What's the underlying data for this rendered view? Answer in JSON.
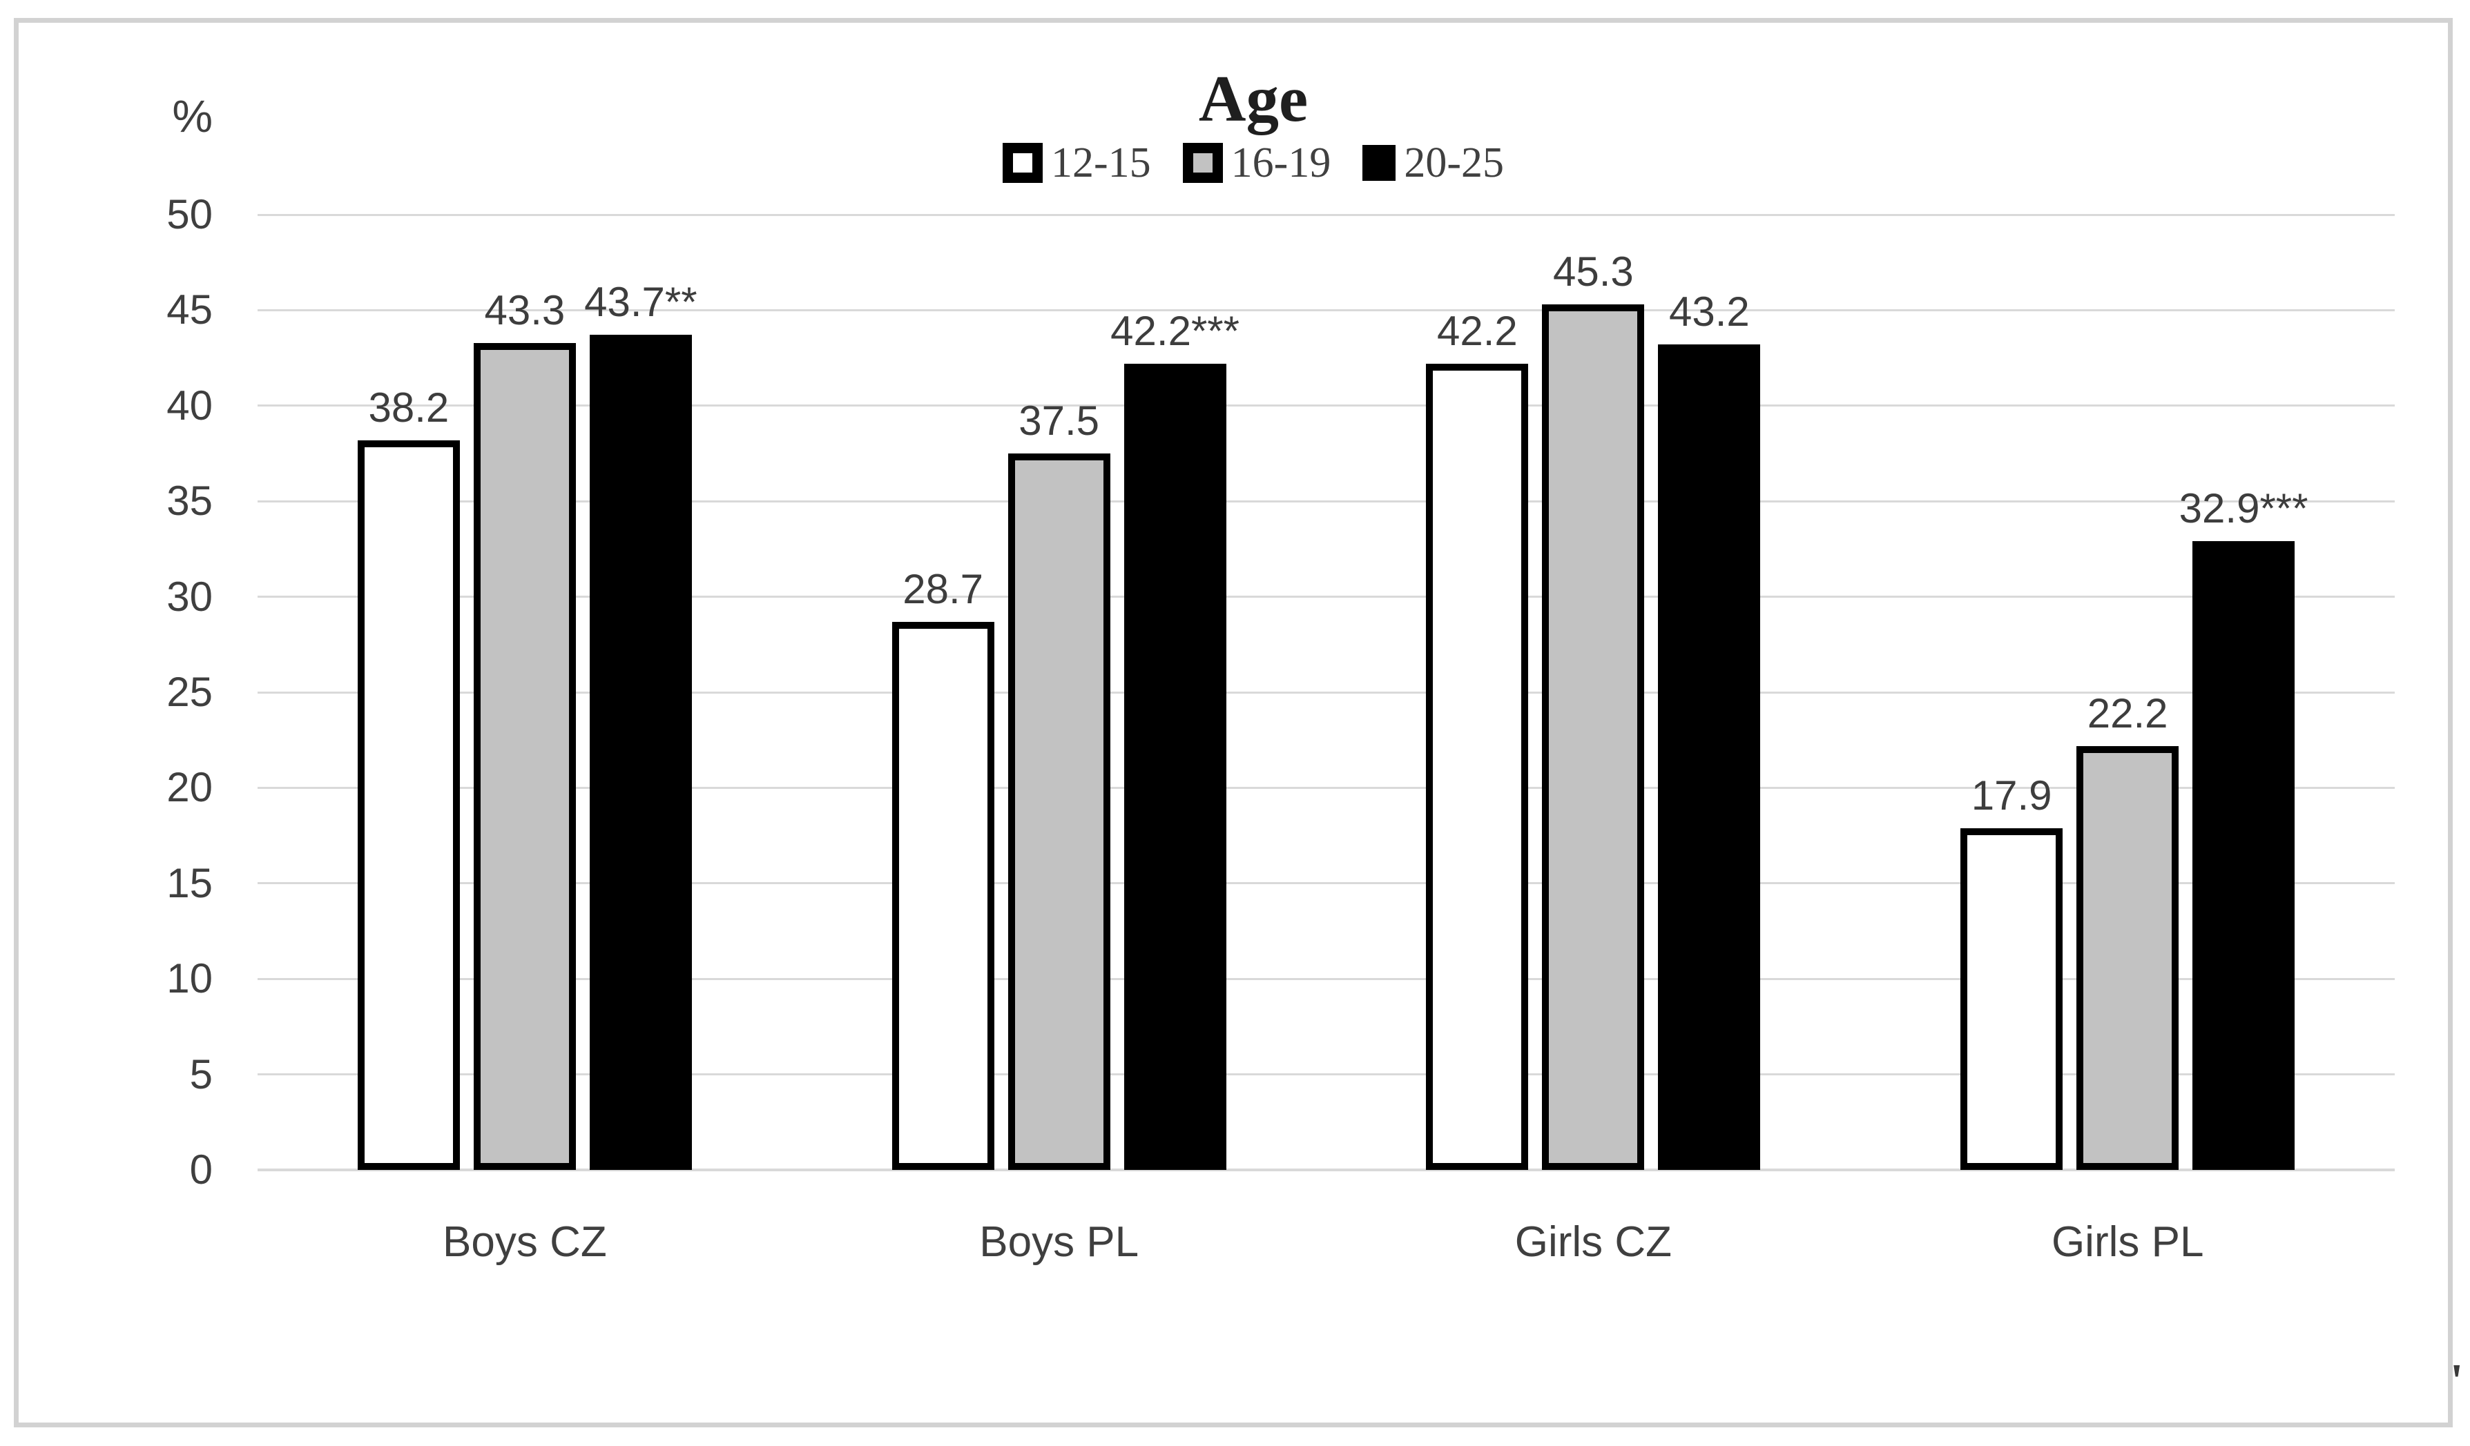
{
  "chart_data": {
    "type": "bar",
    "title": "Age",
    "ylabel": "%",
    "categories": [
      "Boys CZ",
      "Boys PL",
      "Girls CZ",
      "Girls PL"
    ],
    "series": [
      {
        "name": "12-15",
        "fill": "#ffffff",
        "border": "#000000",
        "values": [
          38.2,
          28.7,
          42.2,
          17.9
        ],
        "labels": [
          "38.2",
          "28.7",
          "42.2",
          "17.9"
        ]
      },
      {
        "name": "16-19",
        "fill": "#c2c2c2",
        "border": "#000000",
        "values": [
          43.3,
          37.5,
          45.3,
          22.2
        ],
        "labels": [
          "43.3",
          "37.5",
          "45.3",
          "22.2"
        ]
      },
      {
        "name": "20-25",
        "fill": "#000000",
        "border": "#000000",
        "values": [
          43.7,
          42.2,
          43.2,
          32.9
        ],
        "labels": [
          "43.7**",
          "42.2***",
          "43.2",
          "32.9***"
        ]
      }
    ],
    "ylim": [
      0,
      50
    ],
    "ytick_step": 5,
    "yticks": [
      "50",
      "45",
      "40",
      "35",
      "30",
      "25",
      "20",
      "15",
      "10",
      "5",
      "0"
    ],
    "grid": true,
    "legend_position": "top-center"
  },
  "colors": {
    "gridline": "#d9d9d9",
    "baseline": "#d9d9d9",
    "axis_text": "#3f3f3f",
    "title_text": "#1f1f1f",
    "data_label_text": "#3d3d3d",
    "frame_border": "#d2d2d2",
    "gray_fill": "#c2c2c2",
    "black_fill": "#000000",
    "white_fill": "#ffffff",
    "bar_border": "#000000"
  },
  "figure": {
    "corner_mark": "'"
  }
}
